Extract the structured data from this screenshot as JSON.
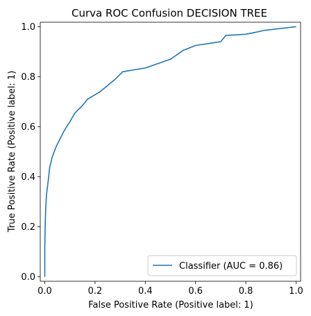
{
  "chart_data": {
    "type": "line",
    "title": "Curva ROC Confusion DECISION TREE",
    "xlabel": "False Positive Rate (Positive label: 1)",
    "ylabel": "True Positive Rate (Positive label: 1)",
    "xlim": [
      0.0,
      1.0
    ],
    "ylim": [
      0.0,
      1.0
    ],
    "xticks": [
      "0.0",
      "0.2",
      "0.4",
      "0.6",
      "0.8",
      "1.0"
    ],
    "yticks": [
      "0.0",
      "0.2",
      "0.4",
      "0.6",
      "0.8",
      "1.0"
    ],
    "grid": false,
    "legend_position": "bottom-right",
    "series": [
      {
        "name": "Classifier (AUC = 0.86)",
        "color": "#1f77b4",
        "x": [
          0.0,
          0.0,
          0.002,
          0.004,
          0.007,
          0.012,
          0.02,
          0.03,
          0.045,
          0.06,
          0.075,
          0.09,
          0.1,
          0.12,
          0.15,
          0.17,
          0.22,
          0.28,
          0.31,
          0.4,
          0.5,
          0.55,
          0.6,
          0.7,
          0.72,
          0.8,
          0.85,
          0.87,
          1.0
        ],
        "y": [
          0.0,
          0.12,
          0.22,
          0.28,
          0.33,
          0.37,
          0.44,
          0.48,
          0.52,
          0.55,
          0.58,
          0.605,
          0.62,
          0.655,
          0.685,
          0.71,
          0.74,
          0.79,
          0.82,
          0.835,
          0.87,
          0.905,
          0.925,
          0.94,
          0.965,
          0.97,
          0.98,
          0.985,
          1.0
        ]
      }
    ]
  }
}
